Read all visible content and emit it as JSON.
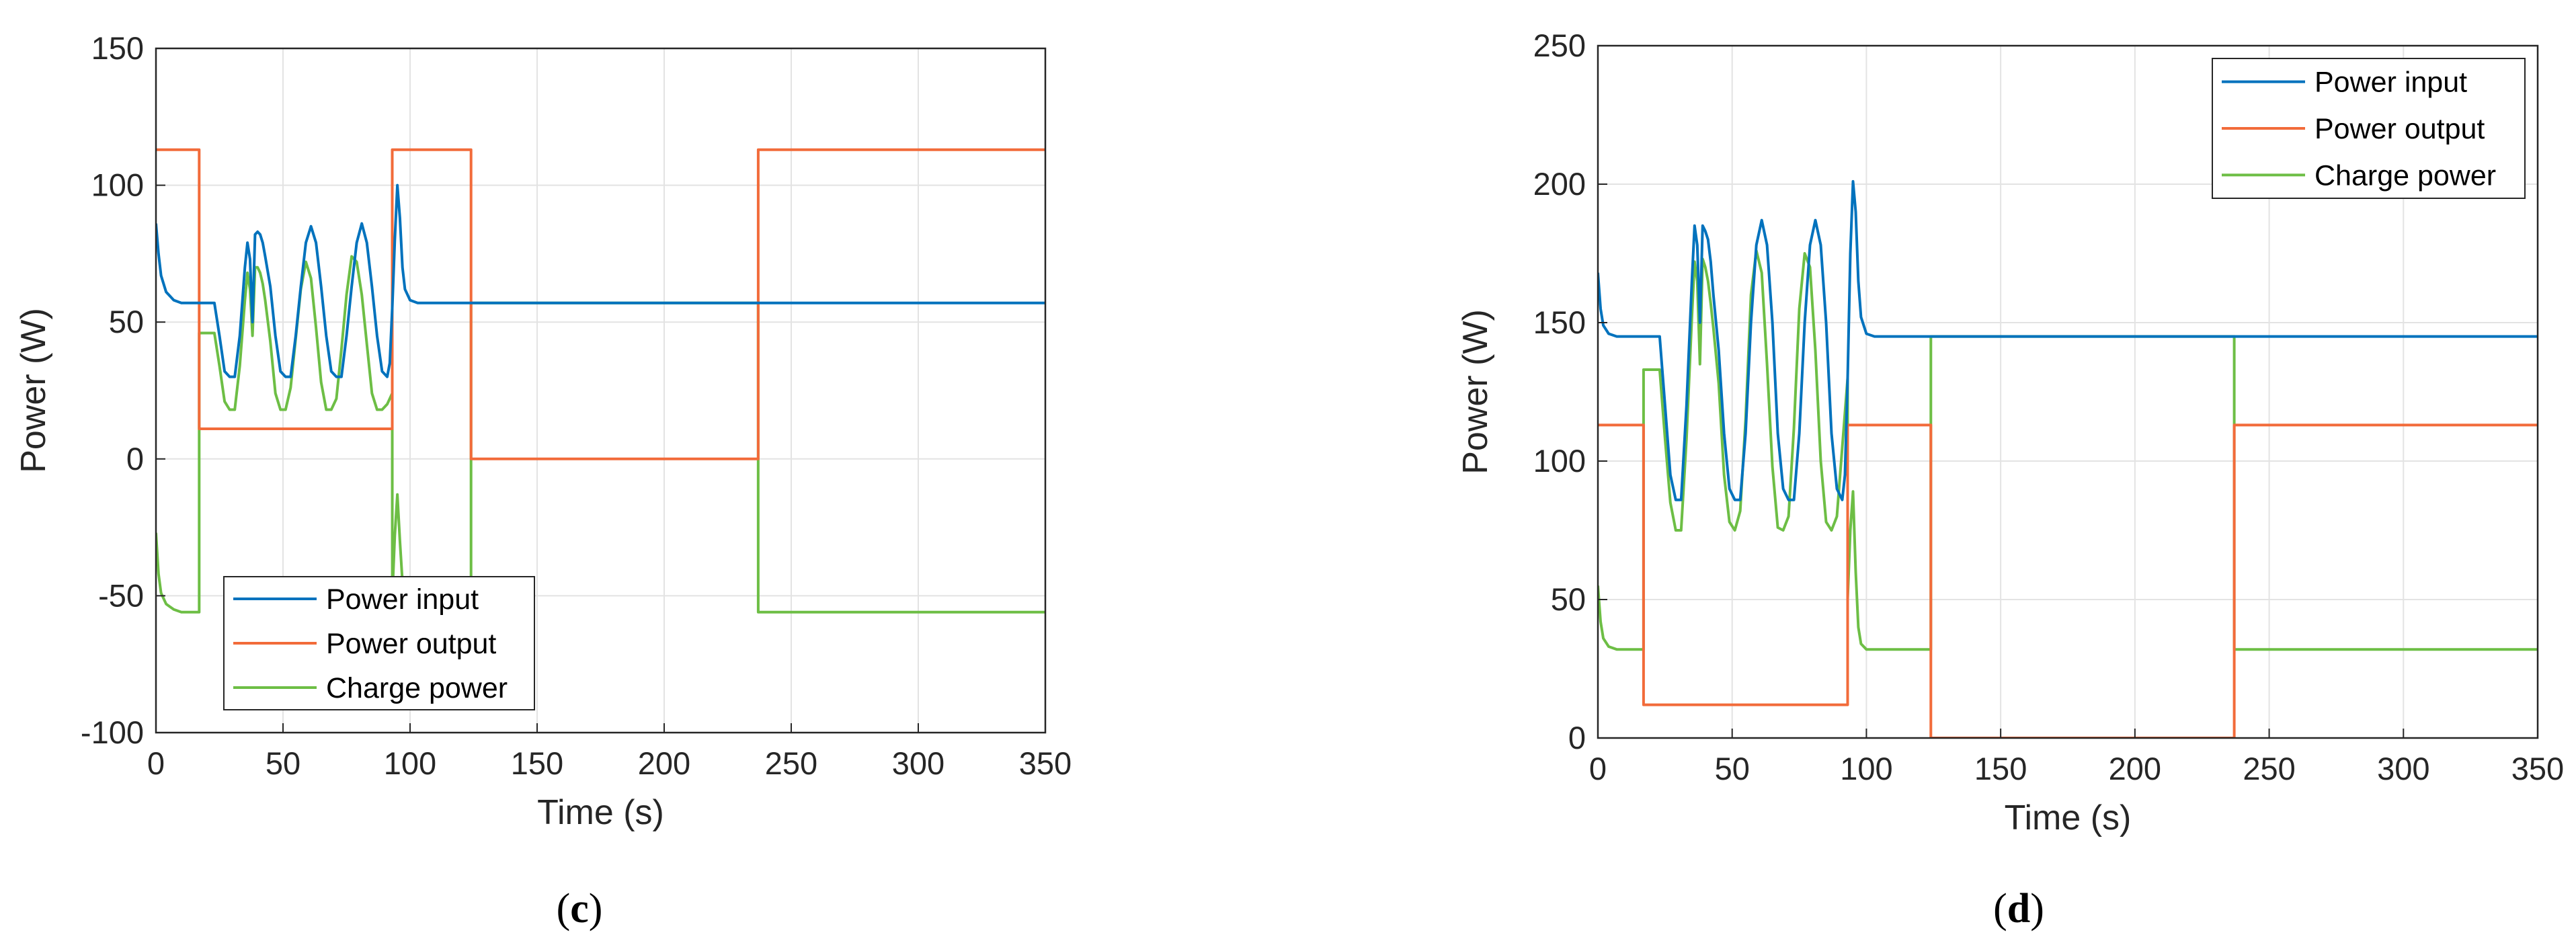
{
  "colors": {
    "power_input": "#0072BD",
    "power_output": "#F26B3A",
    "charge_power": "#6DBE45",
    "grid": "#E3E3E3",
    "axes": "#262626"
  },
  "chart_data": [
    {
      "type": "line",
      "caption": {
        "open": "(",
        "letter": "c",
        "close": ")"
      },
      "xlabel": "Time (s)",
      "ylabel": "Power (W)",
      "xlim": [
        0,
        350
      ],
      "ylim": [
        -100,
        150
      ],
      "xticks": [
        "0",
        "50",
        "100",
        "150",
        "200",
        "250",
        "300",
        "350"
      ],
      "yticks": [
        "-100",
        "-50",
        "0",
        "50",
        "100",
        "150"
      ],
      "xtick_values": [
        0,
        50,
        100,
        150,
        200,
        250,
        300,
        350
      ],
      "ytick_values": [
        -100,
        -50,
        0,
        50,
        100,
        150
      ],
      "grid": true,
      "legend_position": "bottom-left",
      "series": [
        {
          "name": "Power input",
          "color": "#0072BD",
          "x": [
            0,
            1,
            2,
            4,
            7,
            10,
            14,
            17,
            20,
            23,
            25,
            27,
            29,
            31,
            33,
            35,
            36,
            37,
            38,
            39,
            40,
            41,
            42,
            43,
            45,
            47,
            49,
            51,
            53,
            55,
            57,
            59,
            61,
            63,
            65,
            67,
            69,
            71,
            73,
            75,
            77,
            79,
            81,
            83,
            85,
            87,
            89,
            91,
            92,
            93,
            94,
            95,
            96,
            97,
            98,
            100,
            103,
            108,
            115,
            125,
            150,
            200,
            237,
            250,
            300,
            350
          ],
          "y": [
            86,
            75,
            67,
            61,
            58,
            57,
            57,
            57,
            57,
            57,
            45,
            32,
            30,
            30,
            45,
            70,
            79,
            73,
            50,
            82,
            83,
            82,
            79,
            74,
            63,
            45,
            32,
            30,
            30,
            45,
            63,
            79,
            85,
            79,
            63,
            45,
            32,
            30,
            30,
            45,
            63,
            79,
            86,
            79,
            63,
            45,
            32,
            30,
            35,
            55,
            80,
            100,
            88,
            70,
            62,
            58,
            57,
            57,
            57,
            57,
            57,
            57,
            57,
            57,
            57,
            57
          ]
        },
        {
          "name": "Power output",
          "color": "#F26B3A",
          "x": [
            0,
            17,
            17,
            93,
            93,
            124,
            124,
            237,
            237,
            350
          ],
          "y": [
            113,
            113,
            11,
            11,
            113,
            113,
            0,
            0,
            113,
            113
          ]
        },
        {
          "name": "Charge power",
          "color": "#6DBE45",
          "x": [
            0,
            1,
            2,
            4,
            7,
            10,
            14,
            17,
            17.01,
            20,
            23,
            25,
            27,
            29,
            31,
            33,
            35,
            36,
            37,
            38,
            39,
            40,
            41,
            42,
            43,
            45,
            47,
            49,
            51,
            53,
            55,
            57,
            59,
            61,
            63,
            65,
            67,
            69,
            71,
            73,
            75,
            77,
            79,
            81,
            83,
            85,
            87,
            89,
            91,
            93,
            93.01,
            94,
            95,
            96,
            97,
            98,
            100,
            103,
            108,
            115,
            123.99,
            124,
            150,
            200,
            236.99,
            237,
            250,
            300,
            350
          ],
          "y": [
            -27,
            -42,
            -49,
            -53,
            -55,
            -56,
            -56,
            -56,
            46,
            46,
            46,
            34,
            21,
            18,
            18,
            34,
            58,
            68,
            62,
            45,
            70,
            70,
            68,
            64,
            58,
            43,
            24,
            18,
            18,
            26,
            44,
            62,
            72,
            66,
            48,
            28,
            18,
            18,
            22,
            40,
            60,
            74,
            72,
            60,
            42,
            24,
            18,
            18,
            20,
            24,
            -50,
            -28,
            -13,
            -30,
            -45,
            -53,
            -56,
            -57,
            -57,
            -57,
            -57,
            57,
            57,
            57,
            57,
            -56,
            -56,
            -56,
            -56
          ]
        }
      ]
    },
    {
      "type": "line",
      "caption": {
        "open": "(",
        "letter": "d",
        "close": ")"
      },
      "xlabel": "Time (s)",
      "ylabel": "Power (W)",
      "xlim": [
        0,
        350
      ],
      "ylim": [
        0,
        250
      ],
      "xticks": [
        "0",
        "50",
        "100",
        "150",
        "200",
        "250",
        "300",
        "350"
      ],
      "yticks": [
        "0",
        "50",
        "100",
        "150",
        "200",
        "250"
      ],
      "xtick_values": [
        0,
        50,
        100,
        150,
        200,
        250,
        300,
        350
      ],
      "ytick_values": [
        0,
        50,
        100,
        150,
        200,
        250
      ],
      "grid": true,
      "legend_position": "top-right",
      "series": [
        {
          "name": "Power input",
          "color": "#0072BD",
          "x": [
            0,
            1,
            2,
            4,
            7,
            10,
            14,
            17,
            20,
            23,
            25,
            27,
            29,
            31,
            33,
            35,
            36,
            37,
            38,
            39,
            40,
            41,
            42,
            43,
            45,
            47,
            49,
            51,
            53,
            55,
            57,
            59,
            61,
            63,
            65,
            67,
            69,
            71,
            73,
            75,
            77,
            79,
            81,
            83,
            85,
            87,
            89,
            91,
            92,
            93,
            94,
            95,
            96,
            97,
            98,
            100,
            103,
            108,
            115,
            125,
            150,
            200,
            237,
            250,
            300,
            350
          ],
          "y": [
            168,
            155,
            149,
            146,
            145,
            145,
            145,
            145,
            145,
            145,
            120,
            95,
            86,
            86,
            120,
            165,
            185,
            178,
            150,
            185,
            183,
            180,
            172,
            160,
            140,
            110,
            90,
            86,
            86,
            110,
            150,
            178,
            187,
            178,
            150,
            110,
            90,
            86,
            86,
            110,
            150,
            178,
            187,
            178,
            150,
            110,
            90,
            86,
            95,
            130,
            175,
            201,
            190,
            165,
            152,
            146,
            145,
            145,
            145,
            145,
            145,
            145,
            145,
            145,
            145,
            145
          ]
        },
        {
          "name": "Power output",
          "color": "#F26B3A",
          "x": [
            0,
            17,
            17,
            93,
            93,
            124,
            124,
            237,
            237,
            350
          ],
          "y": [
            113,
            113,
            12,
            12,
            113,
            113,
            0,
            0,
            113,
            113
          ]
        },
        {
          "name": "Charge power",
          "color": "#6DBE45",
          "x": [
            0,
            1,
            2,
            4,
            7,
            10,
            14,
            17,
            17.01,
            20,
            23,
            25,
            27,
            29,
            31,
            33,
            35,
            36,
            37,
            38,
            39,
            40,
            41,
            42,
            43,
            45,
            47,
            49,
            51,
            53,
            55,
            57,
            59,
            61,
            63,
            65,
            67,
            69,
            71,
            73,
            75,
            77,
            79,
            81,
            83,
            85,
            87,
            89,
            91,
            93,
            93.01,
            94,
            95,
            96,
            97,
            98,
            100,
            103,
            108,
            115,
            123.99,
            124,
            150,
            200,
            236.99,
            237,
            250,
            300,
            350
          ],
          "y": [
            55,
            42,
            36,
            33,
            32,
            32,
            32,
            32,
            133,
            133,
            133,
            108,
            85,
            75,
            75,
            108,
            152,
            172,
            165,
            135,
            173,
            170,
            165,
            157,
            148,
            128,
            95,
            78,
            75,
            82,
            115,
            160,
            176,
            168,
            135,
            98,
            76,
            75,
            80,
            112,
            155,
            175,
            170,
            140,
            100,
            78,
            75,
            80,
            105,
            130,
            50,
            75,
            89,
            60,
            40,
            34,
            32,
            32,
            32,
            32,
            32,
            145,
            145,
            145,
            145,
            32,
            32,
            32,
            32
          ]
        }
      ]
    }
  ]
}
